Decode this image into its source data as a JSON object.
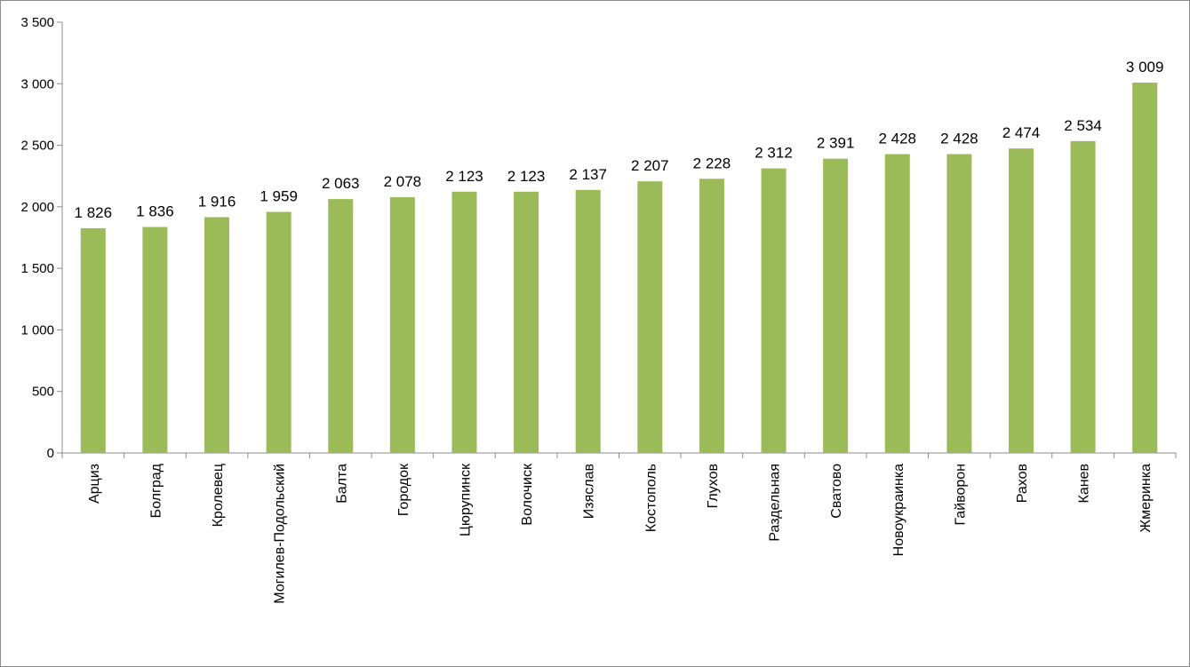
{
  "chart_data": {
    "type": "bar",
    "title": "",
    "xlabel": "",
    "ylabel": "",
    "ylim": [
      0,
      3500
    ],
    "yticks": [
      0,
      500,
      1000,
      1500,
      2000,
      2500,
      3000,
      3500
    ],
    "ytick_labels": [
      "0",
      "500",
      "1 000",
      "1 500",
      "2 000",
      "2 500",
      "3 000",
      "3 500"
    ],
    "grid": false,
    "legend": "none",
    "bar_color": "#9bbb59",
    "categories": [
      "Арциз",
      "Болград",
      "Кролевец",
      "Могилев-Подольский",
      "Балта",
      "Городок",
      "Цюрупинск",
      "Волочиск",
      "Изяслав",
      "Костополь",
      "Глухов",
      "Раздельная",
      "Сватово",
      "Новоукраинка",
      "Гайворон",
      "Рахов",
      "Канев",
      "Жмеринка"
    ],
    "values": [
      1826,
      1836,
      1916,
      1959,
      2063,
      2078,
      2123,
      2123,
      2137,
      2207,
      2228,
      2312,
      2391,
      2428,
      2428,
      2474,
      2534,
      3009
    ],
    "value_labels": [
      "1 826",
      "1 836",
      "1 916",
      "1 959",
      "2 063",
      "2 078",
      "2 123",
      "2 123",
      "2 137",
      "2 207",
      "2 228",
      "2 312",
      "2 391",
      "2 428",
      "2 428",
      "2 474",
      "2 534",
      "3 009"
    ]
  }
}
